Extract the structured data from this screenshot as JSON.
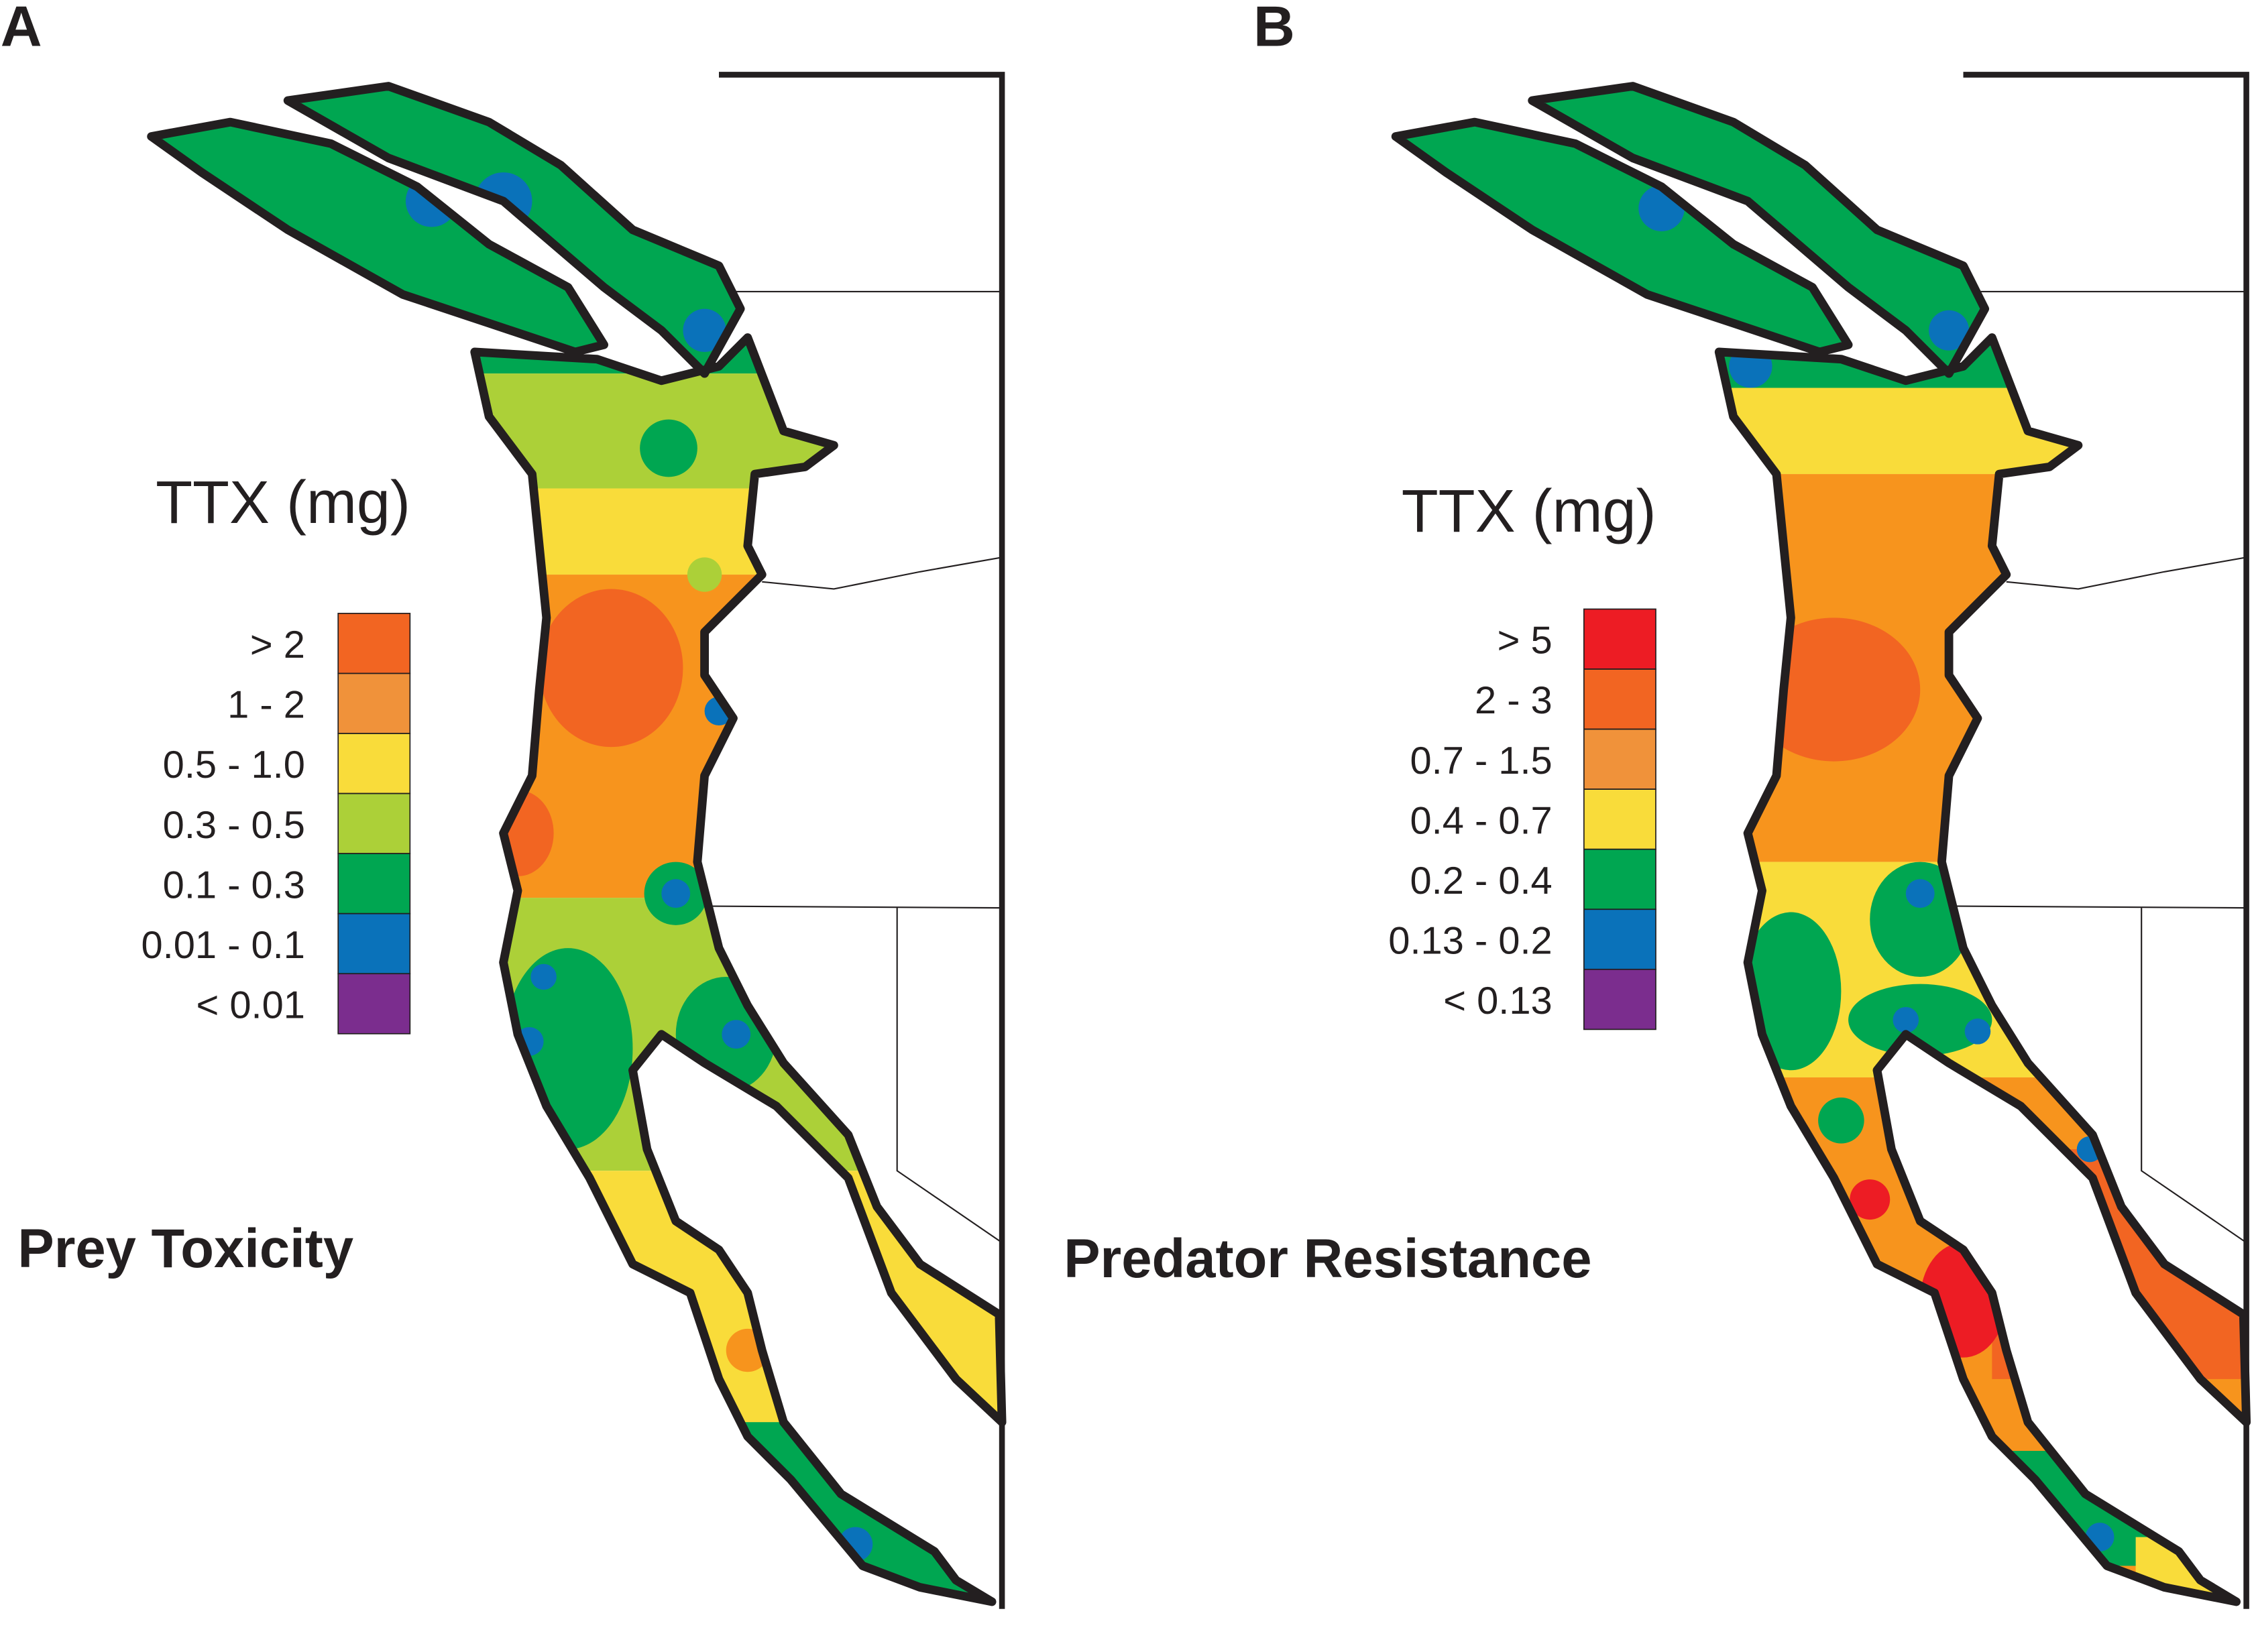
{
  "panels": [
    {
      "letter": "A",
      "title": "Prey Toxicity",
      "legend_title": "TTX (mg)",
      "legend": [
        {
          "label": "> 2",
          "color": "#f26522"
        },
        {
          "label": "1 - 2",
          "color": "#f0923a"
        },
        {
          "label": "0.5 - 1.0",
          "color": "#f9dc3a"
        },
        {
          "label": "0.3 - 0.5",
          "color": "#acd038"
        },
        {
          "label": "0.1 - 0.3",
          "color": "#00a651"
        },
        {
          "label": "0.01 - 0.1",
          "color": "#0a72ba"
        },
        {
          "label": "< 0.01",
          "color": "#7b2d8e"
        }
      ]
    },
    {
      "letter": "B",
      "title": "Predator Resistance",
      "legend_title": "TTX (mg)",
      "legend": [
        {
          "label": "> 5",
          "color": "#ed1c24"
        },
        {
          "label": "2 - 3",
          "color": "#f26522"
        },
        {
          "label": "0.7 - 1.5",
          "color": "#f0923a"
        },
        {
          "label": "0.4 - 0.7",
          "color": "#f9dc3a"
        },
        {
          "label": "0.2 - 0.4",
          "color": "#00a651"
        },
        {
          "label": "0.13 - 0.2",
          "color": "#0a72ba"
        },
        {
          "label": "< 0.13",
          "color": "#7b2d8e"
        }
      ]
    }
  ]
}
